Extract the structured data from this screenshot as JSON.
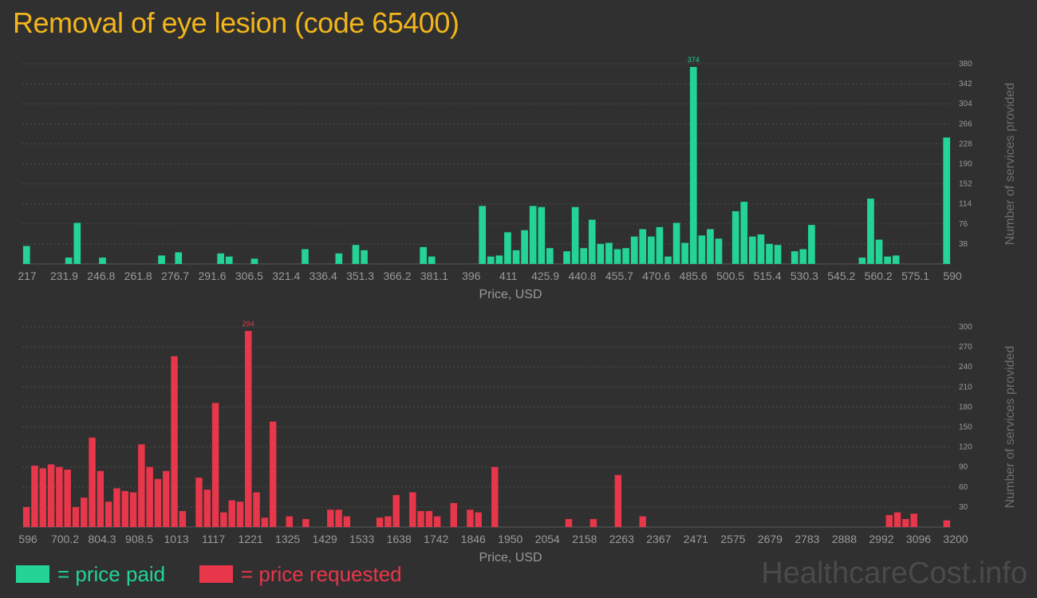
{
  "title": "Removal of eye lesion (code 65400)",
  "colors": {
    "paid": "#23d496",
    "requested": "#e8364a",
    "title": "#f2b51b",
    "background": "#303030",
    "grid": "#4d4d4d",
    "axis_text": "#9a9a9a"
  },
  "legend": {
    "paid_label": "= price paid",
    "requested_label": "= price requested"
  },
  "watermark": "HealthcareCost.info",
  "chart_data": [
    {
      "type": "bar",
      "name": "price paid",
      "title": "",
      "xlabel": "Price, USD",
      "ylabel": "Number of services provided",
      "ylim": [
        0,
        380
      ],
      "yticks": [
        38,
        76,
        114,
        152,
        190,
        228,
        266,
        304,
        342,
        380
      ],
      "xticks": [
        "217",
        "231.9",
        "246.8",
        "261.8",
        "276.7",
        "291.6",
        "306.5",
        "321.4",
        "336.4",
        "351.3",
        "366.2",
        "381.1",
        "396",
        "411",
        "425.9",
        "440.8",
        "455.7",
        "470.6",
        "485.6",
        "500.5",
        "515.4",
        "530.3",
        "545.2",
        "560.2",
        "575.1",
        "590"
      ],
      "peak_label": "374",
      "values": [
        34,
        0,
        0,
        0,
        0,
        12,
        78,
        0,
        0,
        12,
        0,
        0,
        0,
        0,
        0,
        0,
        16,
        0,
        22,
        0,
        0,
        0,
        0,
        20,
        14,
        0,
        0,
        10,
        0,
        0,
        0,
        0,
        0,
        28,
        0,
        0,
        0,
        20,
        0,
        36,
        26,
        0,
        0,
        0,
        0,
        0,
        0,
        32,
        14,
        0,
        0,
        0,
        0,
        0,
        110,
        14,
        16,
        60,
        26,
        64,
        110,
        108,
        30,
        0,
        24,
        108,
        30,
        84,
        38,
        40,
        28,
        30,
        52,
        66,
        52,
        70,
        14,
        78,
        40,
        374,
        54,
        66,
        48,
        0,
        100,
        118,
        52,
        56,
        38,
        36,
        0,
        24,
        28,
        74,
        0,
        0,
        0,
        0,
        0,
        12,
        124,
        46,
        14,
        16,
        0,
        0,
        0,
        0,
        0,
        240
      ]
    },
    {
      "type": "bar",
      "name": "price requested",
      "title": "",
      "xlabel": "Price, USD",
      "ylabel": "Number of services provided",
      "ylim": [
        0,
        300
      ],
      "yticks": [
        30,
        60,
        90,
        120,
        150,
        180,
        210,
        240,
        270,
        300
      ],
      "xticks": [
        "596",
        "700.2",
        "804.3",
        "908.5",
        "1013",
        "1117",
        "1221",
        "1325",
        "1429",
        "1533",
        "1638",
        "1742",
        "1846",
        "1950",
        "2054",
        "2158",
        "2263",
        "2367",
        "2471",
        "2575",
        "2679",
        "2783",
        "2888",
        "2992",
        "3096",
        "3200"
      ],
      "peak_label": "294",
      "values": [
        30,
        92,
        88,
        94,
        90,
        86,
        30,
        44,
        134,
        84,
        38,
        58,
        54,
        52,
        124,
        90,
        72,
        84,
        256,
        24,
        0,
        74,
        56,
        186,
        22,
        40,
        38,
        294,
        52,
        14,
        158,
        0,
        16,
        0,
        12,
        0,
        0,
        26,
        26,
        16,
        0,
        0,
        0,
        14,
        16,
        48,
        0,
        52,
        24,
        24,
        16,
        0,
        36,
        0,
        26,
        22,
        0,
        90,
        0,
        0,
        0,
        0,
        0,
        0,
        0,
        0,
        12,
        0,
        0,
        12,
        0,
        0,
        78,
        0,
        0,
        16,
        0,
        0,
        0,
        0,
        0,
        0,
        0,
        0,
        0,
        0,
        0,
        0,
        0,
        0,
        0,
        0,
        0,
        0,
        0,
        0,
        0,
        0,
        0,
        0,
        0,
        0,
        0,
        0,
        0,
        18,
        22,
        12,
        20,
        0,
        0,
        0,
        10
      ]
    }
  ]
}
